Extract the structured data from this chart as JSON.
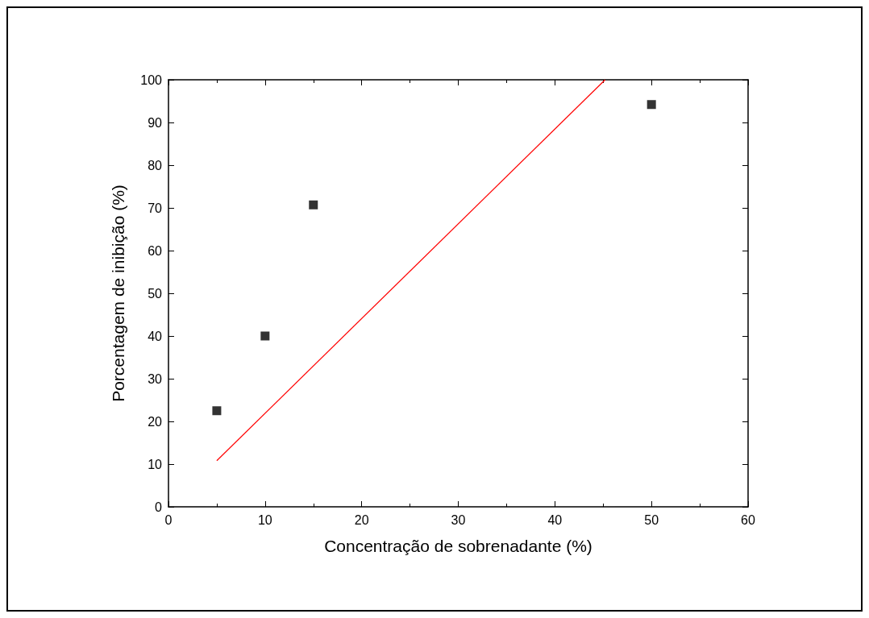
{
  "chart_data": {
    "type": "scatter",
    "xlabel": "Concentração de sobrenadante (%)",
    "ylabel": "Porcentagem de inibição (%)",
    "xlim": [
      0,
      60
    ],
    "xticks": [
      0,
      10,
      20,
      30,
      40,
      50,
      60
    ],
    "ylim": [
      0,
      100
    ],
    "yticks": [
      0,
      10,
      20,
      30,
      40,
      50,
      60,
      70,
      80,
      90,
      100
    ],
    "grid": false,
    "series": [
      {
        "color": "#000000",
        "marker": "square",
        "x": [
          5,
          10,
          15,
          50
        ],
        "values": [
          22.5,
          40,
          70.7,
          94.2
        ]
      },
      {
        "type": "line",
        "color": "#ff0000",
        "marker": "none",
        "line_style": "solid",
        "x": [
          5,
          45.2
        ],
        "values": [
          10.8,
          100
        ]
      }
    ]
  }
}
